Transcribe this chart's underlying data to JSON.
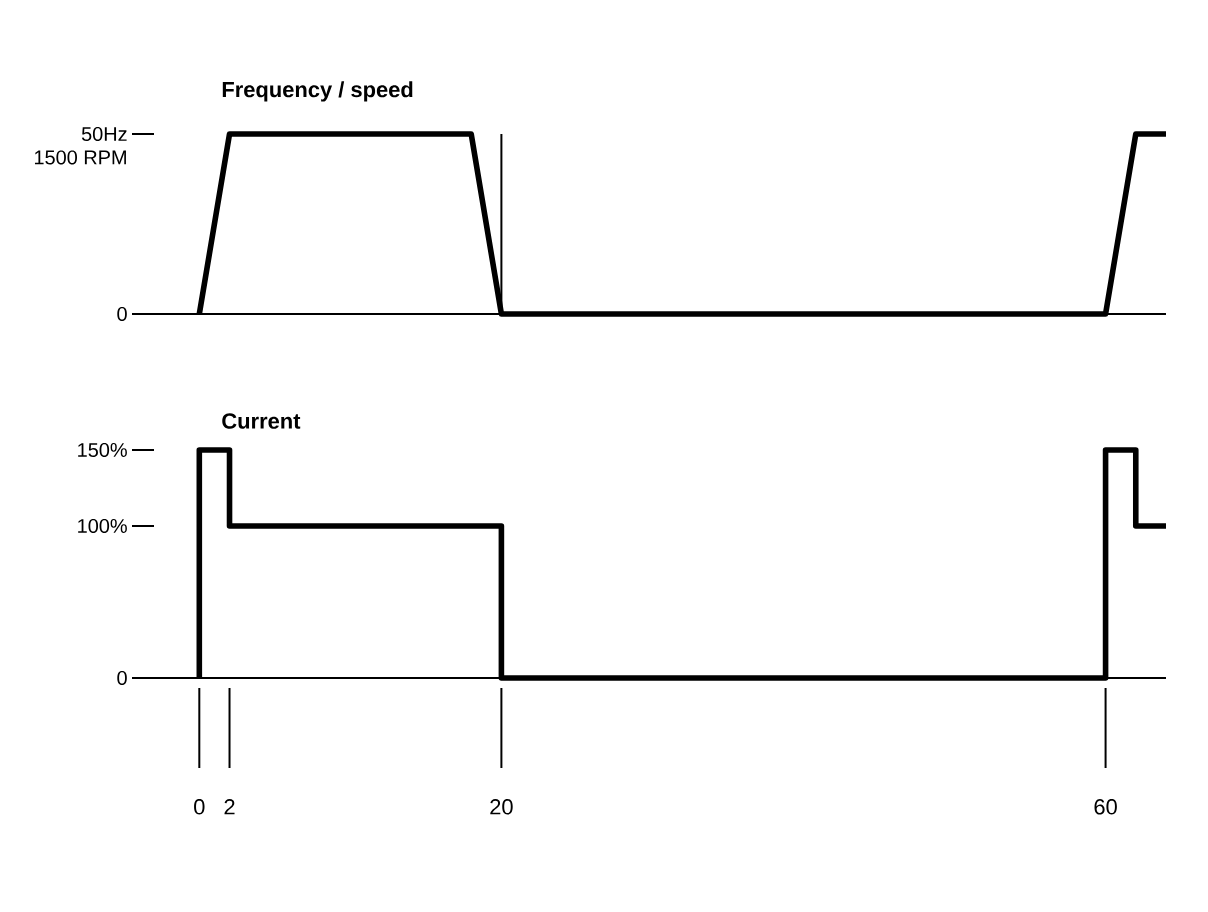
{
  "chart_data": [
    {
      "type": "line",
      "title": "Frequency / speed",
      "xlim": [
        -3,
        64
      ],
      "ylim": [
        0,
        50
      ],
      "yticks": [
        0,
        {
          "value": 50,
          "label": "50Hz"
        }
      ],
      "annotations": [
        "1500 RPM"
      ],
      "tick_labels": "y",
      "ref_lines": [
        {
          "axis": "x",
          "value": 20
        }
      ],
      "series": [
        {
          "color": "#000000",
          "x": [
            0,
            2,
            18,
            20,
            60,
            62,
            64
          ],
          "values": [
            0,
            50,
            50,
            0,
            0,
            50,
            50
          ]
        }
      ]
    },
    {
      "type": "line",
      "title": "Current",
      "xlim": [
        -3,
        64
      ],
      "ylim": [
        0,
        150
      ],
      "xticks": [
        0,
        2,
        20,
        60
      ],
      "yticks": [
        {
          "value": 150,
          "label": "150%"
        },
        {
          "value": 100,
          "label": "100%"
        },
        0
      ],
      "series": [
        {
          "color": "#000000",
          "x": [
            0,
            0,
            2,
            2,
            20,
            20,
            60,
            60,
            62,
            62,
            64
          ],
          "values": [
            0,
            150,
            150,
            100,
            100,
            0,
            0,
            150,
            150,
            100,
            100
          ]
        }
      ]
    }
  ]
}
